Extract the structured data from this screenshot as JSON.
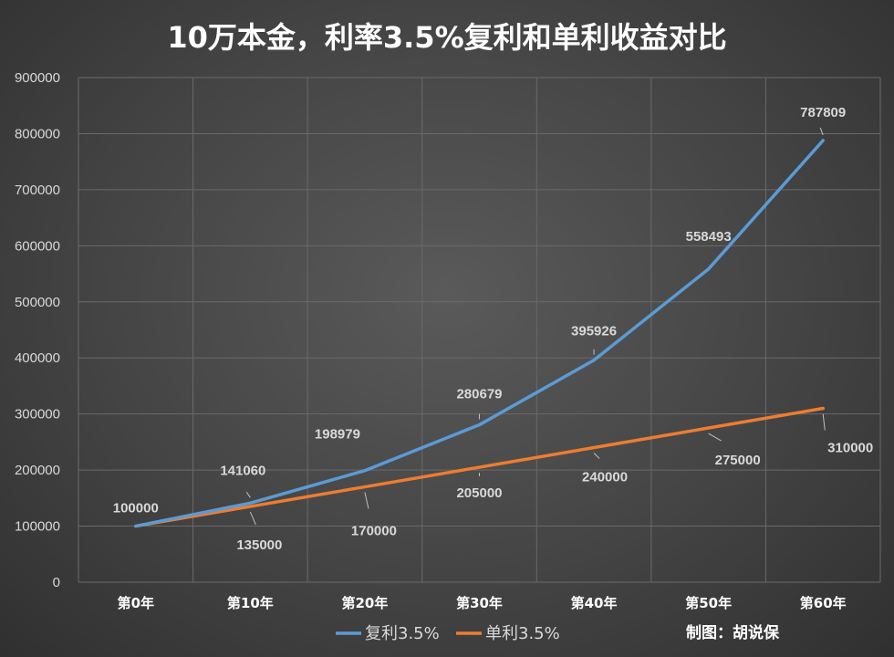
{
  "chart_data": {
    "type": "line",
    "title": "10万本金，利率3.5%复利和单利收益对比",
    "categories": [
      "第0年",
      "第10年",
      "第20年",
      "第30年",
      "第40年",
      "第50年",
      "第60年"
    ],
    "ylim": [
      0,
      900000
    ],
    "yticks": [
      0,
      100000,
      200000,
      300000,
      400000,
      500000,
      600000,
      700000,
      800000,
      900000
    ],
    "grid": true,
    "legend_position": "bottom",
    "series": [
      {
        "name": "复利3.5%",
        "color": "#5b9bd5",
        "values": [
          100000,
          141060,
          198979,
          280679,
          395926,
          558493,
          787809
        ],
        "labels": [
          "100000",
          "141060",
          "198979",
          "280679",
          "395926",
          "558493",
          "787809"
        ]
      },
      {
        "name": "单利3.5%",
        "color": "#ed7d31",
        "values": [
          100000,
          135000,
          170000,
          205000,
          240000,
          275000,
          310000
        ],
        "labels": [
          "",
          "135000",
          "170000",
          "205000",
          "240000",
          "275000",
          "310000"
        ]
      }
    ],
    "credit": "制图：胡说保"
  }
}
